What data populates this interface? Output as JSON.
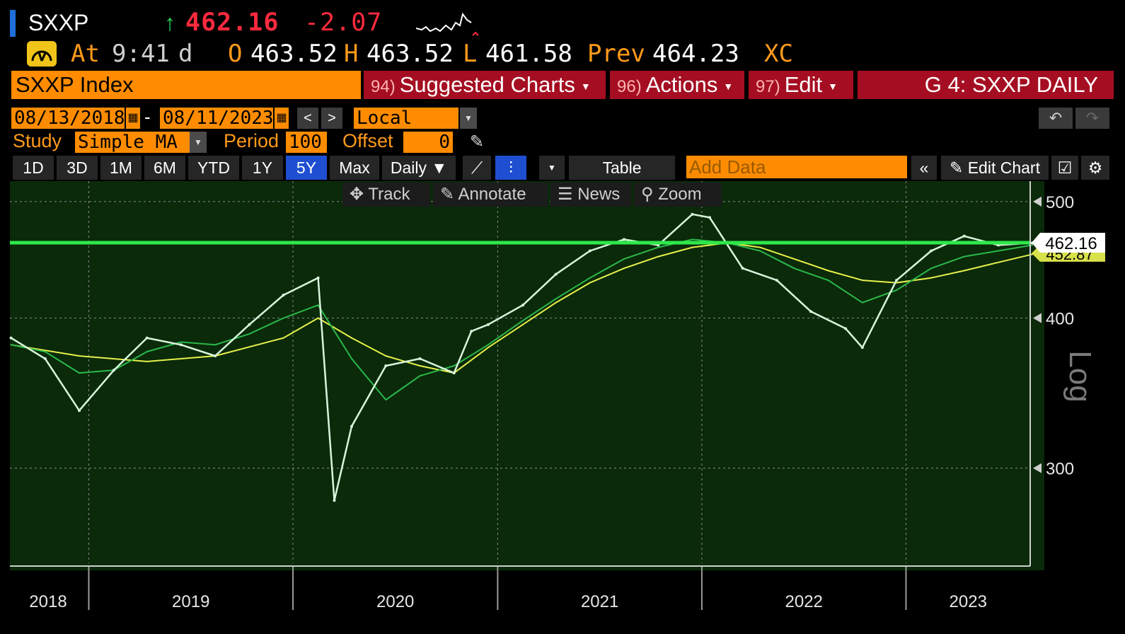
{
  "ticker": "SXXP",
  "last_price": "462.16",
  "net_change": "-2.07",
  "quote": {
    "at_label": "At",
    "time": "9:41",
    "d": "d",
    "open_label": "O",
    "open": "463.52",
    "high_label": "H",
    "high": "463.52",
    "low_label": "L",
    "low": "461.58",
    "prev_label": "Prev",
    "prev": "464.23",
    "exch": "XC"
  },
  "header": {
    "security": "SXXP Index",
    "tab_suggested_num": "94)",
    "tab_suggested": "Suggested Charts",
    "tab_actions_num": "96)",
    "tab_actions": "Actions",
    "tab_edit_num": "97)",
    "tab_edit": "Edit",
    "page_id": "G 4: SXXP DAILY"
  },
  "controls": {
    "start_date": "08/13/2018",
    "dash": "-",
    "end_date": "08/11/2023",
    "currency": "Local CCY",
    "study_label": "Study",
    "study": "Simple MA",
    "period_label": "Period",
    "period": "100",
    "offset_label": "Offset",
    "offset": "0",
    "add_data_placeholder": "Add Data",
    "table_label": "Table",
    "daily_label": "Daily ▼",
    "edit_chart_label": "Edit Chart"
  },
  "ranges": [
    "1D",
    "3D",
    "1M",
    "6M",
    "YTD",
    "1Y",
    "5Y",
    "Max"
  ],
  "toolbar": {
    "track": "Track",
    "annotate": "Annotate",
    "news": "News",
    "zoom": "Zoom"
  },
  "colors": {
    "price": "#d8f5dc",
    "ma_short": "#2bb84a",
    "ma_long": "#e6f04a",
    "hline": "#2ee84a",
    "plot_bg": "#0a2a0a",
    "accent_orange": "#ff8c00",
    "accent_red": "#a50e22"
  },
  "chart_data": {
    "type": "line",
    "scale": "log",
    "y_axis_label": "Log",
    "ylim": [
      250,
      520
    ],
    "y_ticks": [
      300,
      400,
      500
    ],
    "x_labels": [
      "2018",
      "2019",
      "2020",
      "2021",
      "2022",
      "2023"
    ],
    "last_value_label": "462.16",
    "ma_value_label": "452.87",
    "horizontal_line": 462.16,
    "series": [
      {
        "role": "price",
        "x": [
          "2018-08",
          "2018-10",
          "2018-12",
          "2019-02",
          "2019-04",
          "2019-06",
          "2019-08",
          "2019-10",
          "2019-12",
          "2020-02",
          "2020-03",
          "2020-04",
          "2020-06",
          "2020-08",
          "2020-10",
          "2020-11",
          "2020-12",
          "2021-02",
          "2021-04",
          "2021-06",
          "2021-08",
          "2021-10",
          "2021-12",
          "2022-01",
          "2022-03",
          "2022-05",
          "2022-07",
          "2022-09",
          "2022-10",
          "2022-12",
          "2023-02",
          "2023-04",
          "2023-06",
          "2023-08"
        ],
        "values": [
          385,
          370,
          335,
          362,
          385,
          380,
          372,
          395,
          418,
          432,
          282,
          325,
          365,
          370,
          360,
          390,
          395,
          410,
          435,
          455,
          465,
          460,
          488,
          485,
          440,
          430,
          405,
          392,
          378,
          430,
          455,
          468,
          460,
          462
        ]
      },
      {
        "role": "ma_short",
        "x": [
          "2018-08",
          "2018-10",
          "2018-12",
          "2019-02",
          "2019-04",
          "2019-06",
          "2019-08",
          "2019-10",
          "2019-12",
          "2020-02",
          "2020-04",
          "2020-06",
          "2020-08",
          "2020-10",
          "2020-12",
          "2021-02",
          "2021-04",
          "2021-06",
          "2021-08",
          "2021-10",
          "2021-12",
          "2022-02",
          "2022-04",
          "2022-06",
          "2022-08",
          "2022-10",
          "2022-12",
          "2023-02",
          "2023-04",
          "2023-06",
          "2023-08"
        ],
        "values": [
          380,
          375,
          360,
          362,
          375,
          382,
          380,
          388,
          400,
          410,
          370,
          342,
          358,
          365,
          380,
          398,
          415,
          432,
          448,
          458,
          465,
          462,
          455,
          440,
          430,
          412,
          422,
          440,
          450,
          455,
          460
        ]
      },
      {
        "role": "ma_long",
        "x": [
          "2018-08",
          "2018-12",
          "2019-04",
          "2019-08",
          "2019-12",
          "2020-02",
          "2020-04",
          "2020-06",
          "2020-08",
          "2020-10",
          "2020-12",
          "2021-02",
          "2021-04",
          "2021-06",
          "2021-08",
          "2021-10",
          "2021-12",
          "2022-02",
          "2022-04",
          "2022-06",
          "2022-08",
          "2022-10",
          "2022-12",
          "2023-02",
          "2023-04",
          "2023-06",
          "2023-08"
        ],
        "values": [
          380,
          372,
          368,
          372,
          385,
          400,
          385,
          372,
          365,
          360,
          378,
          395,
          412,
          428,
          440,
          450,
          458,
          462,
          458,
          448,
          438,
          430,
          428,
          432,
          438,
          445,
          452
        ]
      }
    ]
  }
}
